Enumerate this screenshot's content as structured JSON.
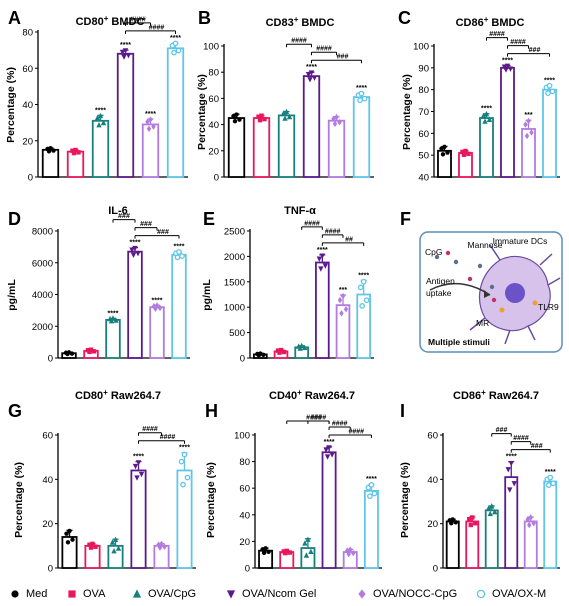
{
  "colors": {
    "Med": "#000000",
    "OVA": "#e8175d",
    "OVA/CpG": "#17807e",
    "OVA/Ncom Gel": "#5b1a8c",
    "OVA/NOCC-CpG": "#b27be0",
    "OVA/OX-M": "#5fc6e8"
  },
  "legend": [
    {
      "label": "Med",
      "color": "#000000",
      "marker": "circle"
    },
    {
      "label": "OVA",
      "color": "#e8175d",
      "marker": "square"
    },
    {
      "label": "OVA/CpG",
      "color": "#17807e",
      "marker": "triangle"
    },
    {
      "label": "OVA/Ncom Gel",
      "color": "#5b1a8c",
      "marker": "triangle-down"
    },
    {
      "label": "OVA/NOCC-CpG",
      "color": "#b27be0",
      "marker": "diamond"
    },
    {
      "label": "OVA/OX-M",
      "color": "#5fc6e8",
      "marker": "circle-open"
    }
  ],
  "panelF": {
    "letter": "F",
    "labels": {
      "cpg": "CpG",
      "mannose": "Mannose",
      "immature": "Immature DCs",
      "antigen": "Antigen",
      "uptake": "uptake",
      "tlr9": "TLR9",
      "mr": "MR",
      "multiple": "Multiple stimuli"
    }
  },
  "chart_data": [
    {
      "letter": "A",
      "type": "bar",
      "title": "CD80",
      "title_sup": "+",
      "title_rest": " BMDC",
      "ylabel": "Percentage (%)",
      "ylim": [
        0,
        80
      ],
      "yticks": [
        0,
        20,
        40,
        60,
        80
      ],
      "categories": [
        "Med",
        "OVA",
        "OVA/CpG",
        "OVA/Ncom Gel",
        "OVA/NOCC-CpG",
        "OVA/OX-M"
      ],
      "values": [
        15,
        14,
        31,
        68,
        29,
        71
      ],
      "errors": [
        1,
        1,
        3,
        2,
        3,
        3
      ],
      "stars": [
        "",
        "",
        "****",
        "****",
        "****",
        "****"
      ],
      "brackets": [
        {
          "label": "####",
          "from": 3,
          "to": 4
        },
        {
          "label": "####",
          "from": 3,
          "to": 5
        }
      ]
    },
    {
      "letter": "B",
      "type": "bar",
      "title": "CD83",
      "title_sup": "+",
      "title_rest": " BMDC",
      "ylabel": "Percentage (%)",
      "ylim": [
        0,
        100
      ],
      "yticks": [
        0,
        20,
        40,
        60,
        80,
        100
      ],
      "categories": [
        "Med",
        "OVA",
        "OVA/CpG",
        "OVA/Ncom Gel",
        "OVA/NOCC-CpG",
        "OVA/OX-M"
      ],
      "values": [
        45,
        45,
        47,
        77,
        43,
        61
      ],
      "errors": [
        3,
        2,
        3,
        3,
        3,
        3
      ],
      "stars": [
        "",
        "",
        "",
        "****",
        "",
        "****"
      ],
      "brackets": [
        {
          "label": "####",
          "from": 2,
          "to": 3
        },
        {
          "label": "####",
          "from": 3,
          "to": 4
        },
        {
          "label": "###",
          "from": 3,
          "to": 5
        }
      ]
    },
    {
      "letter": "C",
      "type": "bar",
      "title": "CD86",
      "title_sup": "+",
      "title_rest": " BMDC",
      "ylabel": "Percentage (%)",
      "ylim": [
        40,
        100
      ],
      "yticks": [
        40,
        50,
        60,
        70,
        80,
        90,
        100
      ],
      "categories": [
        "Med",
        "OVA",
        "OVA/CpG",
        "OVA/Ncom Gel",
        "OVA/NOCC-CpG",
        "OVA/OX-M"
      ],
      "values": [
        52,
        51,
        67,
        90,
        62,
        80
      ],
      "errors": [
        2,
        1,
        2,
        1,
        4,
        2
      ],
      "stars": [
        "",
        "",
        "****",
        "****",
        "***",
        "****"
      ],
      "brackets": [
        {
          "label": "####",
          "from": 2,
          "to": 3
        },
        {
          "label": "####",
          "from": 3,
          "to": 4
        },
        {
          "label": "###",
          "from": 3,
          "to": 5
        }
      ]
    },
    {
      "letter": "D",
      "type": "bar",
      "title": "IL-6",
      "title_sup": "",
      "title_rest": "",
      "ylabel": "pg/mL",
      "ylim": [
        0,
        8000
      ],
      "yticks": [
        0,
        2000,
        4000,
        6000,
        8000
      ],
      "categories": [
        "Med",
        "OVA",
        "OVA/CpG",
        "OVA/Ncom Gel",
        "OVA/NOCC-CpG",
        "OVA/OX-M"
      ],
      "values": [
        300,
        450,
        2400,
        6700,
        3200,
        6500
      ],
      "errors": [
        60,
        80,
        100,
        250,
        120,
        200
      ],
      "stars": [
        "",
        "",
        "****",
        "****",
        "****",
        "****"
      ],
      "brackets": [
        {
          "label": "###",
          "from": 2,
          "to": 3
        },
        {
          "label": "###",
          "from": 3,
          "to": 4
        },
        {
          "label": "###",
          "from": 3,
          "to": 5
        }
      ]
    },
    {
      "letter": "E",
      "type": "bar",
      "title": "TNF-α",
      "title_sup": "",
      "title_rest": "",
      "ylabel": "pg/mL",
      "ylim": [
        0,
        2500
      ],
      "yticks": [
        0,
        500,
        1000,
        1500,
        2000,
        2500
      ],
      "categories": [
        "Med",
        "OVA",
        "OVA/CpG",
        "OVA/Ncom Gel",
        "OVA/NOCC-CpG",
        "OVA/OX-M"
      ],
      "values": [
        70,
        130,
        210,
        1880,
        1040,
        1250
      ],
      "errors": [
        20,
        30,
        30,
        150,
        200,
        280
      ],
      "stars": [
        "",
        "",
        "",
        "****",
        "***",
        "****"
      ],
      "brackets": [
        {
          "label": "####",
          "from": 2,
          "to": 3
        },
        {
          "label": "####",
          "from": 3,
          "to": 4
        },
        {
          "label": "##",
          "from": 3,
          "to": 5
        }
      ]
    },
    {
      "letter": "G",
      "type": "bar",
      "title": "CD80",
      "title_sup": "+",
      "title_rest": " Raw264.7",
      "ylabel": "Percentage (%)",
      "ylim": [
        0,
        60
      ],
      "yticks": [
        0,
        20,
        40,
        60
      ],
      "categories": [
        "Med",
        "OVA",
        "OVA/CpG",
        "OVA/Ncom Gel",
        "OVA/NOCC-CpG",
        "OVA/OX-M"
      ],
      "values": [
        14,
        10,
        10,
        44,
        10,
        44
      ],
      "errors": [
        3,
        1,
        3,
        4,
        1,
        8
      ],
      "stars": [
        "",
        "",
        "",
        "****",
        "",
        "****"
      ],
      "brackets": [
        {
          "label": "####",
          "from": 3,
          "to": 4
        },
        {
          "label": "####",
          "from": 3,
          "to": 5
        }
      ]
    },
    {
      "letter": "H",
      "type": "bar",
      "title": "CD40",
      "title_sup": "+",
      "title_rest": " Raw264.7",
      "ylabel": "Percentage (%)",
      "ylim": [
        0,
        100
      ],
      "yticks": [
        0,
        20,
        40,
        60,
        80,
        100
      ],
      "categories": [
        "Med",
        "OVA",
        "OVA/CpG",
        "OVA/Ncom Gel",
        "OVA/NOCC-CpG",
        "OVA/OX-M"
      ],
      "values": [
        13,
        12,
        15,
        87,
        12,
        58
      ],
      "errors": [
        2,
        1,
        7,
        4,
        2,
        5
      ],
      "stars": [
        "",
        "",
        "",
        "****",
        "",
        "****"
      ],
      "brackets": [
        {
          "label": "####",
          "from": 1,
          "to": 3
        },
        {
          "label": "####",
          "from": 2,
          "to": 3
        },
        {
          "label": "####",
          "from": 3,
          "to": 4
        },
        {
          "label": "####",
          "from": 3,
          "to": 5
        }
      ]
    },
    {
      "letter": "I",
      "type": "bar",
      "title": "CD86",
      "title_sup": "+",
      "title_rest": " Raw264.7",
      "ylabel": "Percentage (%)",
      "ylim": [
        0,
        60
      ],
      "yticks": [
        0,
        20,
        40,
        60
      ],
      "categories": [
        "Med",
        "OVA",
        "OVA/CpG",
        "OVA/Ncom Gel",
        "OVA/NOCC-CpG",
        "OVA/OX-M"
      ],
      "values": [
        21,
        21,
        26,
        41,
        21,
        39
      ],
      "errors": [
        1,
        2,
        2,
        7,
        2,
        2
      ],
      "stars": [
        "",
        "",
        "",
        "****",
        "",
        "****"
      ],
      "brackets": [
        {
          "label": "###",
          "from": 2,
          "to": 3
        },
        {
          "label": "####",
          "from": 3,
          "to": 4
        },
        {
          "label": "###",
          "from": 3,
          "to": 5
        }
      ]
    }
  ]
}
